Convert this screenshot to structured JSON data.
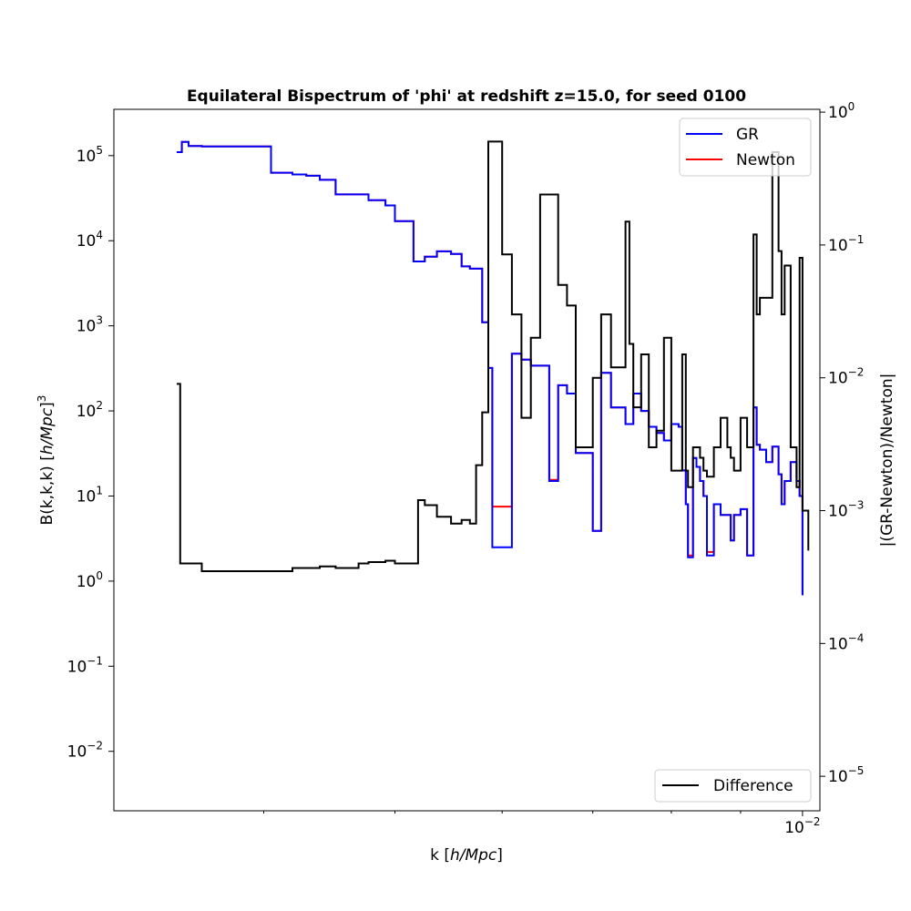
{
  "chart_data": {
    "type": "line",
    "title": "Equilateral Bispectrum of 'phi' at redshift z=15.0, for seed 0100",
    "xlabel": "k [h/Mpc]",
    "xscale": "log",
    "xlim": [
      0.0031,
      0.0103
    ],
    "x_ticks": [
      {
        "value": 0.01,
        "label": "10",
        "exp": "−2"
      }
    ],
    "y_left": {
      "label": "B(k,k,k) [h/Mpc]³",
      "scale": "log",
      "lim": [
        0.002,
        350000
      ],
      "ticks": [
        {
          "value": 0.01,
          "label": "10",
          "exp": "−2"
        },
        {
          "value": 0.1,
          "label": "10",
          "exp": "−1"
        },
        {
          "value": 1,
          "label": "10",
          "exp": "0"
        },
        {
          "value": 10,
          "label": "10",
          "exp": "1"
        },
        {
          "value": 100,
          "label": "10",
          "exp": "2"
        },
        {
          "value": 1000,
          "label": "10",
          "exp": "3"
        },
        {
          "value": 10000,
          "label": "10",
          "exp": "4"
        },
        {
          "value": 100000,
          "label": "10",
          "exp": "5"
        }
      ]
    },
    "y_right": {
      "label": "|(GR-Newton)/Newton|",
      "scale": "log",
      "lim": [
        5.5e-06,
        1.05
      ],
      "ticks": [
        {
          "value": 1e-05,
          "label": "10",
          "exp": "−5"
        },
        {
          "value": 0.0001,
          "label": "10",
          "exp": "−4"
        },
        {
          "value": 0.001,
          "label": "10",
          "exp": "−3"
        },
        {
          "value": 0.01,
          "label": "10",
          "exp": "−2"
        },
        {
          "value": 0.1,
          "label": "10",
          "exp": "−1"
        },
        {
          "value": 1,
          "label": "10",
          "exp": "0"
        }
      ]
    },
    "legend_left": {
      "placement": "upper right",
      "entries": [
        {
          "name": "GR",
          "color": "#0000ff"
        },
        {
          "name": "Newton",
          "color": "#ff0000"
        }
      ]
    },
    "legend_right": {
      "placement": "lower right",
      "entries": [
        {
          "name": "Difference",
          "color": "#000000"
        }
      ]
    },
    "series": [
      {
        "name": "Newton",
        "axis": "left",
        "color": "#ff0000",
        "x": [
          0.00345,
          0.00348,
          0.00352,
          0.0036,
          0.004,
          0.00405,
          0.0042,
          0.0043,
          0.0044,
          0.00452,
          0.00478,
          0.00492,
          0.005,
          0.00516,
          0.0052,
          0.00526,
          0.00537,
          0.0055,
          0.0056,
          0.00568,
          0.00574,
          0.0058,
          0.00586,
          0.0059,
          0.006,
          0.0061,
          0.0062,
          0.0063,
          0.0064,
          0.0065,
          0.0066,
          0.0067,
          0.0068,
          0.007,
          0.0071,
          0.00722,
          0.0074,
          0.00745,
          0.0075,
          0.0076,
          0.0077,
          0.0078,
          0.0079,
          0.008,
          0.0081,
          0.00815,
          0.0082,
          0.00823,
          0.0083,
          0.00835,
          0.0084,
          0.00845,
          0.0085,
          0.0086,
          0.0087,
          0.0088,
          0.00885,
          0.0089,
          0.009,
          0.0091,
          0.0092,
          0.00925,
          0.0093,
          0.0094,
          0.0095,
          0.0096,
          0.00965,
          0.0097,
          0.0098,
          0.0099,
          0.00995,
          0.01
        ],
        "values": [
          110000,
          145000,
          130000,
          128000,
          128000,
          63000,
          60000,
          58000,
          52000,
          35000,
          30000,
          26000,
          17000,
          5700,
          5700,
          6500,
          7500,
          7000,
          5000,
          4700,
          4700,
          1100,
          320,
          7.5,
          7.5,
          470,
          400,
          340,
          340,
          15.5,
          200,
          160,
          32,
          3.9,
          280,
          110,
          70,
          70,
          160,
          100,
          65,
          55,
          45,
          70,
          65,
          20,
          8,
          2,
          28,
          22,
          15,
          10,
          2.2,
          8,
          6,
          6,
          3,
          6,
          7,
          2,
          110,
          40,
          35,
          25,
          38,
          18,
          8,
          15,
          25,
          15,
          10,
          0.7
        ]
      },
      {
        "name": "GR",
        "axis": "left",
        "color": "#0000ff",
        "x": [
          0.00345,
          0.00348,
          0.00352,
          0.0036,
          0.004,
          0.00405,
          0.0042,
          0.0043,
          0.0044,
          0.00452,
          0.00478,
          0.00492,
          0.005,
          0.00516,
          0.0052,
          0.00526,
          0.00537,
          0.0055,
          0.0056,
          0.00568,
          0.00574,
          0.0058,
          0.00586,
          0.0059,
          0.006,
          0.0061,
          0.0062,
          0.0063,
          0.0064,
          0.0065,
          0.0066,
          0.0067,
          0.0068,
          0.007,
          0.0071,
          0.00722,
          0.0074,
          0.00745,
          0.0075,
          0.0076,
          0.0077,
          0.0078,
          0.0079,
          0.008,
          0.0081,
          0.00815,
          0.0082,
          0.00823,
          0.0083,
          0.00835,
          0.0084,
          0.00845,
          0.0085,
          0.0086,
          0.0087,
          0.0088,
          0.00885,
          0.0089,
          0.009,
          0.0091,
          0.0092,
          0.00925,
          0.0093,
          0.0094,
          0.0095,
          0.0096,
          0.00965,
          0.0097,
          0.0098,
          0.0099,
          0.00995,
          0.01
        ],
        "values": [
          110000,
          145000,
          130000,
          128000,
          128000,
          63000,
          60000,
          58000,
          52000,
          35000,
          30000,
          26000,
          17000,
          5700,
          5700,
          6500,
          7500,
          7000,
          5000,
          4700,
          4700,
          1100,
          320,
          2.5,
          2.5,
          470,
          400,
          340,
          340,
          15,
          200,
          160,
          32,
          3.9,
          280,
          110,
          70,
          70,
          160,
          100,
          65,
          55,
          45,
          70,
          65,
          20,
          8,
          1.9,
          28,
          22,
          15,
          10,
          2.0,
          8,
          6,
          6,
          3,
          6,
          7,
          2,
          110,
          40,
          35,
          25,
          38,
          18,
          8,
          15,
          25,
          15,
          10,
          0.68
        ]
      },
      {
        "name": "Difference",
        "axis": "right",
        "color": "#000000",
        "x": [
          0.00345,
          0.00347,
          0.0036,
          0.004,
          0.0042,
          0.0044,
          0.00452,
          0.0047,
          0.00478,
          0.00492,
          0.005,
          0.00516,
          0.0052,
          0.00526,
          0.00537,
          0.0055,
          0.0056,
          0.00568,
          0.00574,
          0.0058,
          0.00586,
          0.0059,
          0.006,
          0.0061,
          0.0062,
          0.0063,
          0.0064,
          0.0065,
          0.0066,
          0.0067,
          0.0068,
          0.007,
          0.0071,
          0.00722,
          0.0074,
          0.00745,
          0.0075,
          0.0076,
          0.0077,
          0.0078,
          0.0079,
          0.008,
          0.0081,
          0.00815,
          0.0082,
          0.00823,
          0.0083,
          0.00835,
          0.0084,
          0.00845,
          0.0085,
          0.0086,
          0.0087,
          0.0088,
          0.00885,
          0.0089,
          0.009,
          0.0091,
          0.0092,
          0.00925,
          0.0093,
          0.0094,
          0.0095,
          0.0096,
          0.00965,
          0.0097,
          0.0098,
          0.0099,
          0.00995,
          0.01,
          0.0101
        ],
        "values": [
          0.009,
          0.0004,
          0.00035,
          0.00035,
          0.00037,
          0.00038,
          0.00037,
          0.0004,
          0.00041,
          0.00042,
          0.0004,
          0.0004,
          0.0012,
          0.0011,
          0.0009,
          0.0008,
          0.00085,
          0.0008,
          0.0022,
          0.0055,
          0.6,
          0.6,
          0.085,
          0.03,
          0.005,
          0.02,
          0.24,
          0.24,
          0.05,
          0.035,
          0.003,
          0.01,
          0.03,
          0.012,
          0.15,
          0.018,
          0.006,
          0.015,
          0.003,
          0.004,
          0.02,
          0.002,
          0.002,
          0.015,
          0.002,
          0.0015,
          0.003,
          0.003,
          0.0025,
          0.002,
          0.0018,
          0.003,
          0.005,
          0.003,
          0.0025,
          0.002,
          0.005,
          0.003,
          0.12,
          0.03,
          0.04,
          0.04,
          0.5,
          0.09,
          0.03,
          0.07,
          0.003,
          0.0015,
          0.08,
          0.001,
          0.0005
        ]
      }
    ]
  }
}
